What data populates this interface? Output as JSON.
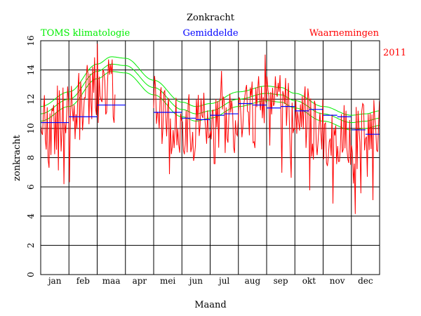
{
  "chart_data": {
    "type": "line",
    "title": "Zonkracht",
    "xlabel": "Maand",
    "ylabel": "zonkracht",
    "year_label": "2011",
    "legend": {
      "climatology": "TOMS klimatologie",
      "average": "Gemiddelde",
      "observations": "Waarnemingen"
    },
    "colors": {
      "climatology": "#00ee00",
      "average": "#0000ff",
      "observations": "#ff0000",
      "grid": "#000000"
    },
    "ylim": [
      0,
      16
    ],
    "yticks": [
      "0",
      "2",
      "4",
      "6",
      "8",
      "10",
      "12",
      "14",
      "16"
    ],
    "xlim": [
      0,
      12
    ],
    "month_labels": [
      "jan",
      "feb",
      "maa",
      "apr",
      "mei",
      "jun",
      "jul",
      "aug",
      "sep",
      "okt",
      "nov",
      "dec"
    ],
    "climatology_center": [
      [
        0,
        11.0
      ],
      [
        1,
        12.0
      ],
      [
        2,
        13.9
      ],
      [
        2.5,
        14.4
      ],
      [
        3,
        14.3
      ],
      [
        4,
        12.8
      ],
      [
        5,
        11.3
      ],
      [
        5.5,
        11.0
      ],
      [
        6,
        11.2
      ],
      [
        7,
        12.0
      ],
      [
        8,
        12.4
      ],
      [
        8.5,
        12.3
      ],
      [
        9,
        11.9
      ],
      [
        10,
        11.0
      ],
      [
        11,
        10.4
      ],
      [
        11.5,
        10.5
      ],
      [
        12,
        10.7
      ]
    ],
    "climatology_band_offset": 0.5,
    "half_month_averages": [
      [
        0,
        0.5,
        10.4
      ],
      [
        0.5,
        1,
        10.4
      ],
      [
        1,
        1.5,
        10.8
      ],
      [
        1.5,
        2,
        10.8
      ],
      [
        2,
        2.5,
        11.6
      ],
      [
        2.5,
        3,
        11.6
      ],
      [
        4,
        4.5,
        11.1
      ],
      [
        4.5,
        5,
        11.1
      ],
      [
        5,
        5.5,
        10.7
      ],
      [
        5.5,
        6,
        10.6
      ],
      [
        6,
        6.5,
        10.9
      ],
      [
        6.5,
        7,
        11.0
      ],
      [
        7,
        7.5,
        11.7
      ],
      [
        7.5,
        8,
        11.6
      ],
      [
        8,
        8.5,
        11.4
      ],
      [
        8.5,
        9,
        11.5
      ],
      [
        9,
        9.5,
        11.2
      ],
      [
        9.5,
        10,
        11.3
      ],
      [
        10,
        10.5,
        10.9
      ],
      [
        10.5,
        11,
        10.8
      ],
      [
        11,
        11.5,
        9.9
      ],
      [
        11.5,
        12,
        9.6
      ]
    ],
    "observation_segments": [
      [
        0,
        2.65
      ],
      [
        4,
        12
      ]
    ],
    "observations_note": "daily values fluctuate roughly 4-16 around climatology"
  }
}
